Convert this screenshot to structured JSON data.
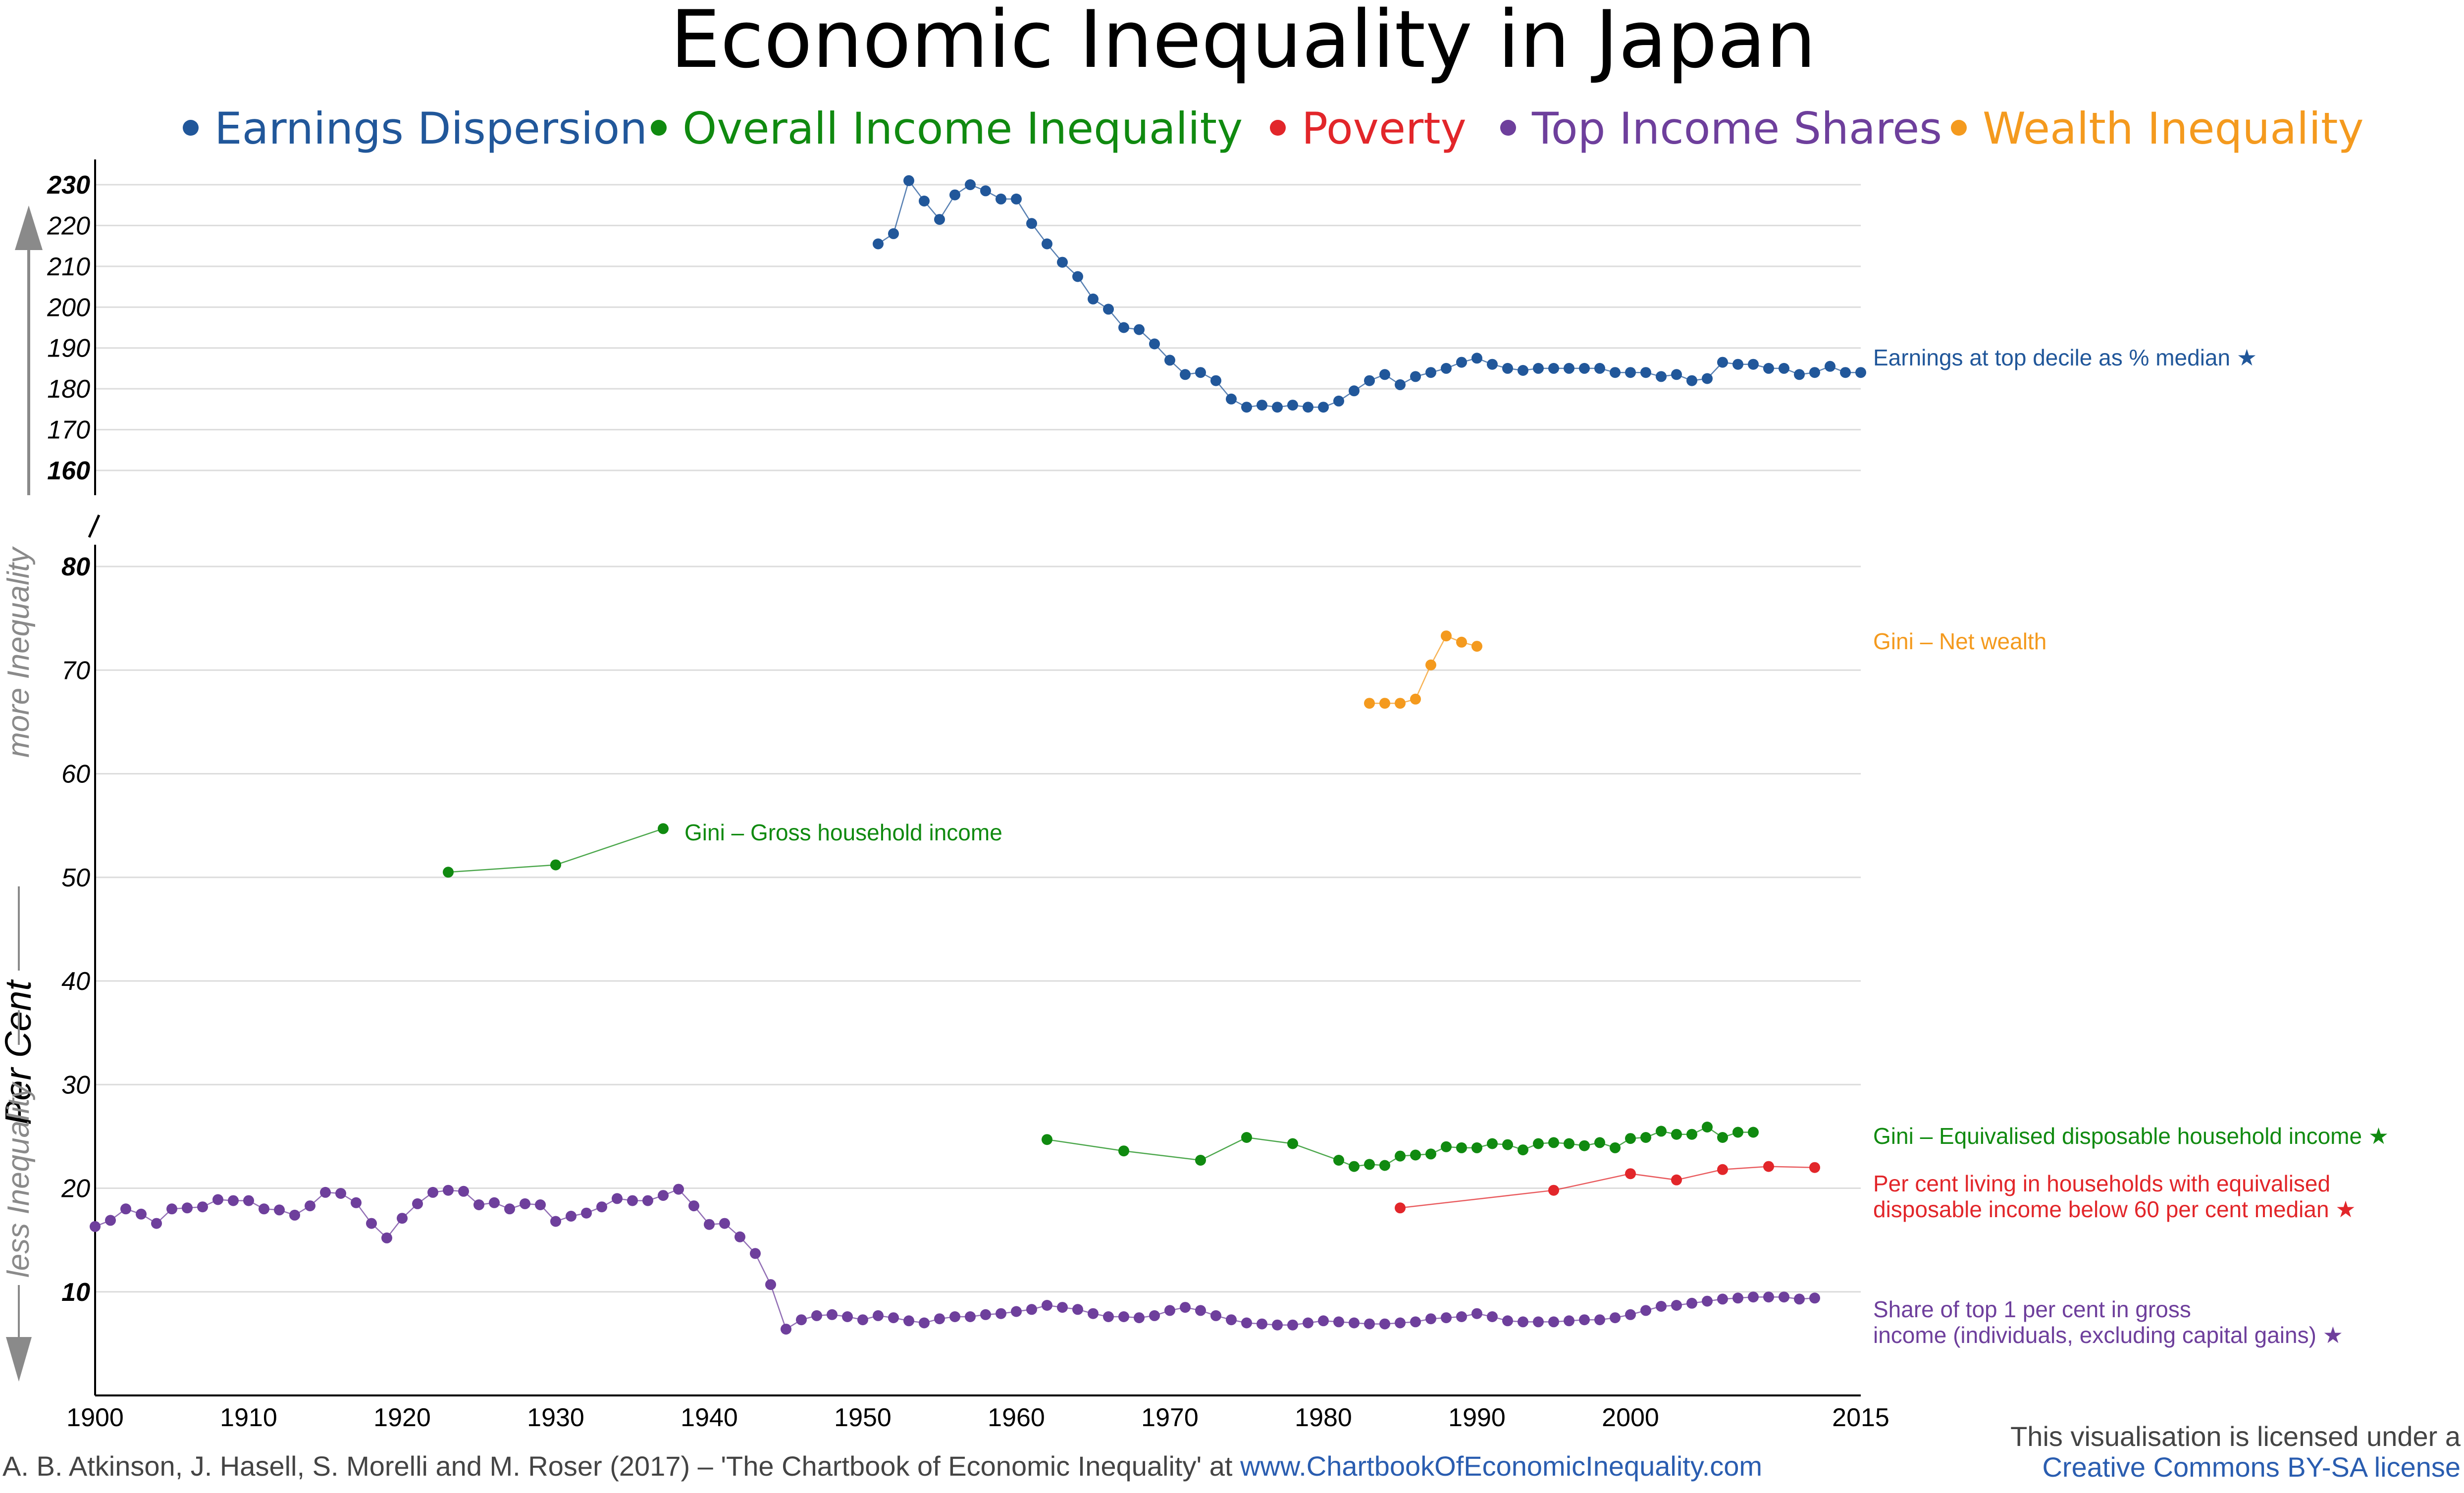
{
  "title": "Economic Inequality in Japan",
  "legend": [
    {
      "name": "Earnings Dispersion",
      "color": "#21579a"
    },
    {
      "name": "Overall Income Inequality",
      "color": "#108a10"
    },
    {
      "name": "Poverty",
      "color": "#e2262a"
    },
    {
      "name": "Top Income Shares",
      "color": "#6e3f9c"
    },
    {
      "name": "Wealth Inequality",
      "color": "#f49a1e"
    }
  ],
  "side_label": {
    "main": "Per Cent",
    "more": "more Inequality",
    "less": "less Inequality"
  },
  "footer": {
    "citation": "A. B. Atkinson, J. Hasell, S. Morelli and M. Roser (2017) – 'The Chartbook of Economic Inequality' at ",
    "url": "www.ChartbookOfEconomicInequality.com",
    "license1": "This visualisation is licensed under a",
    "license2": "Creative Commons BY-SA license"
  },
  "chart_data": [
    {
      "type": "scatter",
      "panel": "upper",
      "xlim": [
        1900,
        2015
      ],
      "ylim": [
        160,
        230
      ],
      "yticks": [
        160,
        170,
        180,
        190,
        200,
        210,
        220,
        230
      ],
      "series": [
        {
          "name": "Earnings at top decile as % median ★",
          "color": "#21579a",
          "points": [
            [
              1951,
              215.5
            ],
            [
              1952,
              218
            ],
            [
              1953,
              231
            ],
            [
              1954,
              226
            ],
            [
              1955,
              221.5
            ],
            [
              1956,
              227.5
            ],
            [
              1957,
              230
            ],
            [
              1958,
              228.5
            ],
            [
              1959,
              226.5
            ],
            [
              1960,
              226.5
            ],
            [
              1961,
              220.5
            ],
            [
              1962,
              215.5
            ],
            [
              1963,
              211
            ],
            [
              1964,
              207.5
            ],
            [
              1965,
              202
            ],
            [
              1966,
              199.5
            ],
            [
              1967,
              195
            ],
            [
              1968,
              194.5
            ],
            [
              1969,
              191
            ],
            [
              1970,
              187
            ],
            [
              1971,
              183.5
            ],
            [
              1972,
              184
            ],
            [
              1973,
              182
            ],
            [
              1974,
              177.5
            ],
            [
              1975,
              175.5
            ],
            [
              1976,
              176
            ],
            [
              1977,
              175.5
            ],
            [
              1978,
              176
            ],
            [
              1979,
              175.5
            ],
            [
              1980,
              175.5
            ],
            [
              1981,
              177
            ],
            [
              1982,
              179.5
            ],
            [
              1983,
              182
            ],
            [
              1984,
              183.5
            ],
            [
              1985,
              181
            ],
            [
              1986,
              183
            ],
            [
              1987,
              184
            ],
            [
              1988,
              185
            ],
            [
              1989,
              186.5
            ],
            [
              1990,
              187.5
            ],
            [
              1991,
              186
            ],
            [
              1992,
              185
            ],
            [
              1993,
              184.5
            ],
            [
              1994,
              185
            ],
            [
              1995,
              185
            ],
            [
              1996,
              185
            ],
            [
              1997,
              185
            ],
            [
              1998,
              185
            ],
            [
              1999,
              184
            ],
            [
              2000,
              184
            ],
            [
              2001,
              184
            ],
            [
              2002,
              183
            ],
            [
              2003,
              183.5
            ],
            [
              2004,
              182
            ],
            [
              2005,
              182.5
            ],
            [
              2006,
              186.5
            ],
            [
              2007,
              186
            ],
            [
              2008,
              186
            ],
            [
              2009,
              185
            ],
            [
              2010,
              185
            ],
            [
              2011,
              183.5
            ],
            [
              2012,
              184
            ],
            [
              2013,
              185.5
            ],
            [
              2014,
              184
            ],
            [
              2015,
              184
            ]
          ]
        }
      ]
    },
    {
      "type": "scatter",
      "panel": "lower",
      "xlim": [
        1900,
        2015
      ],
      "ylim": [
        0,
        80
      ],
      "yticks": [
        10,
        20,
        30,
        40,
        50,
        60,
        70,
        80
      ],
      "xticks": [
        1900,
        1910,
        1920,
        1930,
        1940,
        1950,
        1960,
        1970,
        1980,
        1990,
        2000,
        2015
      ],
      "series": [
        {
          "name": "Gini – Net wealth",
          "color": "#f49a1e",
          "points": [
            [
              1983,
              66.8
            ],
            [
              1984,
              66.8
            ],
            [
              1985,
              66.8
            ],
            [
              1986,
              67.2
            ],
            [
              1987,
              70.5
            ],
            [
              1988,
              73.3
            ],
            [
              1989,
              72.7
            ],
            [
              1990,
              72.3
            ]
          ]
        },
        {
          "name": "Gini – Gross household income",
          "color": "#108a10",
          "points": [
            [
              1923,
              50.5
            ],
            [
              1930,
              51.2
            ],
            [
              1937,
              54.7
            ]
          ]
        },
        {
          "name": "Gini – Equivalised disposable household income ★",
          "color": "#108a10",
          "points": [
            [
              1962,
              24.7
            ],
            [
              1967,
              23.6
            ],
            [
              1972,
              22.7
            ],
            [
              1975,
              24.9
            ],
            [
              1978,
              24.3
            ],
            [
              1981,
              22.7
            ],
            [
              1982,
              22.1
            ],
            [
              1983,
              22.3
            ],
            [
              1984,
              22.2
            ],
            [
              1985,
              23.1
            ],
            [
              1986,
              23.2
            ],
            [
              1987,
              23.3
            ],
            [
              1988,
              24
            ],
            [
              1989,
              23.9
            ],
            [
              1990,
              23.9
            ],
            [
              1991,
              24.3
            ],
            [
              1992,
              24.2
            ],
            [
              1993,
              23.7
            ],
            [
              1994,
              24.3
            ],
            [
              1995,
              24.4
            ],
            [
              1996,
              24.3
            ],
            [
              1997,
              24.1
            ],
            [
              1998,
              24.4
            ],
            [
              1999,
              23.9
            ],
            [
              2000,
              24.8
            ],
            [
              2001,
              24.9
            ],
            [
              2002,
              25.5
            ],
            [
              2003,
              25.2
            ],
            [
              2004,
              25.2
            ],
            [
              2005,
              25.9
            ],
            [
              2006,
              24.9
            ],
            [
              2007,
              25.4
            ],
            [
              2008,
              25.4
            ]
          ]
        },
        {
          "name": "Per cent living in households with equivalised disposable income below 60 per cent median ★",
          "color": "#e2262a",
          "points": [
            [
              1985,
              18.1
            ],
            [
              1995,
              19.8
            ],
            [
              2000,
              21.4
            ],
            [
              2003,
              20.8
            ],
            [
              2006,
              21.8
            ],
            [
              2009,
              22.1
            ],
            [
              2012,
              22
            ]
          ]
        },
        {
          "name": "Share of top 1 per cent in gross income (individuals, excluding capital gains) ★",
          "color": "#6e3f9c",
          "points": [
            [
              1900,
              16.3
            ],
            [
              1901,
              16.9
            ],
            [
              1902,
              18
            ],
            [
              1903,
              17.5
            ],
            [
              1904,
              16.6
            ],
            [
              1905,
              18
            ],
            [
              1906,
              18.1
            ],
            [
              1907,
              18.2
            ],
            [
              1908,
              18.9
            ],
            [
              1909,
              18.8
            ],
            [
              1910,
              18.8
            ],
            [
              1911,
              18
            ],
            [
              1912,
              17.9
            ],
            [
              1913,
              17.4
            ],
            [
              1914,
              18.3
            ],
            [
              1915,
              19.6
            ],
            [
              1916,
              19.5
            ],
            [
              1917,
              18.6
            ],
            [
              1918,
              16.6
            ],
            [
              1919,
              15.2
            ],
            [
              1920,
              17.1
            ],
            [
              1921,
              18.5
            ],
            [
              1922,
              19.6
            ],
            [
              1923,
              19.8
            ],
            [
              1924,
              19.7
            ],
            [
              1925,
              18.4
            ],
            [
              1926,
              18.6
            ],
            [
              1927,
              18
            ],
            [
              1928,
              18.5
            ],
            [
              1929,
              18.4
            ],
            [
              1930,
              16.8
            ],
            [
              1931,
              17.3
            ],
            [
              1932,
              17.6
            ],
            [
              1933,
              18.2
            ],
            [
              1934,
              19
            ],
            [
              1935,
              18.8
            ],
            [
              1936,
              18.8
            ],
            [
              1937,
              19.3
            ],
            [
              1938,
              19.9
            ],
            [
              1939,
              18.3
            ],
            [
              1940,
              16.5
            ],
            [
              1941,
              16.6
            ],
            [
              1942,
              15.3
            ],
            [
              1943,
              13.7
            ],
            [
              1944,
              10.7
            ],
            [
              1945,
              6.4
            ],
            [
              1946,
              7.3
            ],
            [
              1947,
              7.7
            ],
            [
              1948,
              7.8
            ],
            [
              1949,
              7.6
            ],
            [
              1950,
              7.3
            ],
            [
              1951,
              7.7
            ],
            [
              1952,
              7.5
            ],
            [
              1953,
              7.2
            ],
            [
              1954,
              7
            ],
            [
              1955,
              7.4
            ],
            [
              1956,
              7.6
            ],
            [
              1957,
              7.6
            ],
            [
              1958,
              7.8
            ],
            [
              1959,
              7.9
            ],
            [
              1960,
              8.1
            ],
            [
              1961,
              8.3
            ],
            [
              1962,
              8.7
            ],
            [
              1963,
              8.5
            ],
            [
              1964,
              8.3
            ],
            [
              1965,
              7.9
            ],
            [
              1966,
              7.6
            ],
            [
              1967,
              7.6
            ],
            [
              1968,
              7.5
            ],
            [
              1969,
              7.7
            ],
            [
              1970,
              8.2
            ],
            [
              1971,
              8.5
            ],
            [
              1972,
              8.2
            ],
            [
              1973,
              7.7
            ],
            [
              1974,
              7.3
            ],
            [
              1975,
              7
            ],
            [
              1976,
              6.9
            ],
            [
              1977,
              6.8
            ],
            [
              1978,
              6.8
            ],
            [
              1979,
              7
            ],
            [
              1980,
              7.2
            ],
            [
              1981,
              7.1
            ],
            [
              1982,
              7
            ],
            [
              1983,
              6.9
            ],
            [
              1984,
              6.9
            ],
            [
              1985,
              7
            ],
            [
              1986,
              7.1
            ],
            [
              1987,
              7.4
            ],
            [
              1988,
              7.5
            ],
            [
              1989,
              7.6
            ],
            [
              1990,
              7.9
            ],
            [
              1991,
              7.6
            ],
            [
              1992,
              7.2
            ],
            [
              1993,
              7.1
            ],
            [
              1994,
              7.1
            ],
            [
              1995,
              7.1
            ],
            [
              1996,
              7.2
            ],
            [
              1997,
              7.3
            ],
            [
              1998,
              7.3
            ],
            [
              1999,
              7.5
            ],
            [
              2000,
              7.8
            ],
            [
              2001,
              8.2
            ],
            [
              2002,
              8.6
            ],
            [
              2003,
              8.7
            ],
            [
              2004,
              8.9
            ],
            [
              2005,
              9.1
            ],
            [
              2006,
              9.3
            ],
            [
              2007,
              9.4
            ],
            [
              2008,
              9.5
            ],
            [
              2009,
              9.5
            ],
            [
              2010,
              9.5
            ],
            [
              2011,
              9.3
            ],
            [
              2012,
              9.4
            ]
          ]
        }
      ]
    }
  ]
}
